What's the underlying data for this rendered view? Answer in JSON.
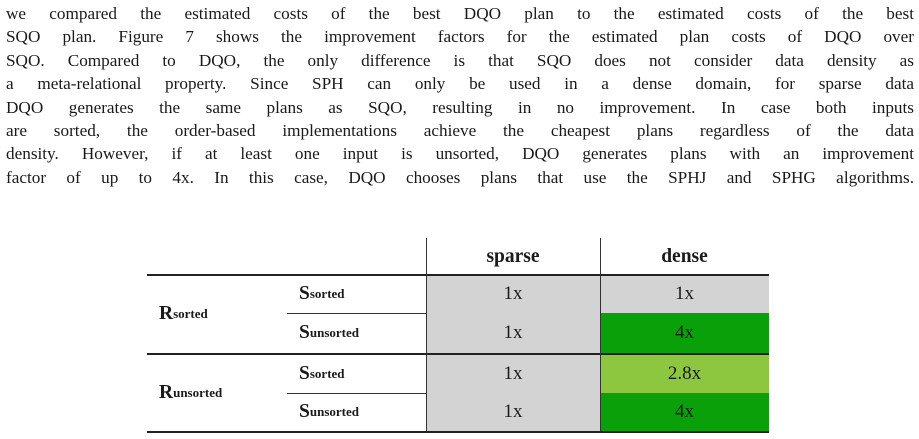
{
  "paragraph": {
    "lines": [
      "we compared the estimated costs of the best DQO plan to the estimated costs of the best",
      "SQO plan. Figure 7 shows the improvement factors for the estimated plan costs of DQO over",
      "SQO. Compared to DQO, the only difference is that SQO does not consider data density as",
      "a meta-relational property. Since SPH can only be used in a dense domain, for sparse data",
      "DQO generates the same plans as SQO, resulting in no improvement. In case both inputs",
      "are sorted, the order-based implementations achieve the cheapest plans regardless of the data",
      "density. However, if at least one input is unsorted, DQO generates plans with an improvement",
      "factor of up to 4x. In this case, DQO chooses plans that use the SPHJ and SPHG algorithms."
    ]
  },
  "table": {
    "col_headers": [
      "sparse",
      "dense"
    ],
    "groups": [
      {
        "label_main": "R",
        "label_sub": "sorted",
        "rows": [
          {
            "sub_main": "S",
            "sub_sub": "sorted",
            "sparse": "1x",
            "dense": "1x"
          },
          {
            "sub_main": "S",
            "sub_sub": "unsorted",
            "sparse": "1x",
            "dense": "4x"
          }
        ]
      },
      {
        "label_main": "R",
        "label_sub": "unsorted",
        "rows": [
          {
            "sub_main": "S",
            "sub_sub": "sorted",
            "sparse": "1x",
            "dense": "2.8x"
          },
          {
            "sub_main": "S",
            "sub_sub": "unsorted",
            "sparse": "1x",
            "dense": "4x"
          }
        ]
      }
    ],
    "colors": {
      "no_improvement": "#d3d3d3",
      "high_improvement": "#0aa00a",
      "mid_improvement": "#8dc63f"
    }
  }
}
